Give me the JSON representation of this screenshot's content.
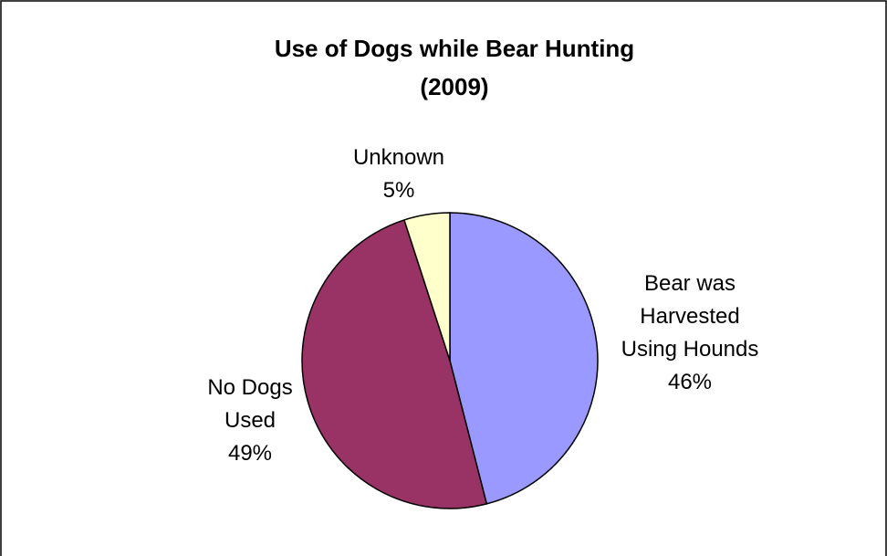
{
  "chart_data": {
    "type": "pie",
    "title_lines": [
      "Use of Dogs while Bear Hunting",
      "(2009)"
    ],
    "slices": [
      {
        "label_lines": [
          "Bear was",
          "Harvested",
          "Using Hounds"
        ],
        "percent_label": "46%",
        "value": 46,
        "color": "#9999ff"
      },
      {
        "label_lines": [
          "No Dogs",
          "Used"
        ],
        "percent_label": "49%",
        "value": 49,
        "color": "#993366"
      },
      {
        "label_lines": [
          "Unknown"
        ],
        "percent_label": "5%",
        "value": 5,
        "color": "#ffffcc"
      }
    ],
    "start_angle_deg": 0,
    "direction": "clockwise",
    "legend": "none",
    "labels": "outside"
  }
}
